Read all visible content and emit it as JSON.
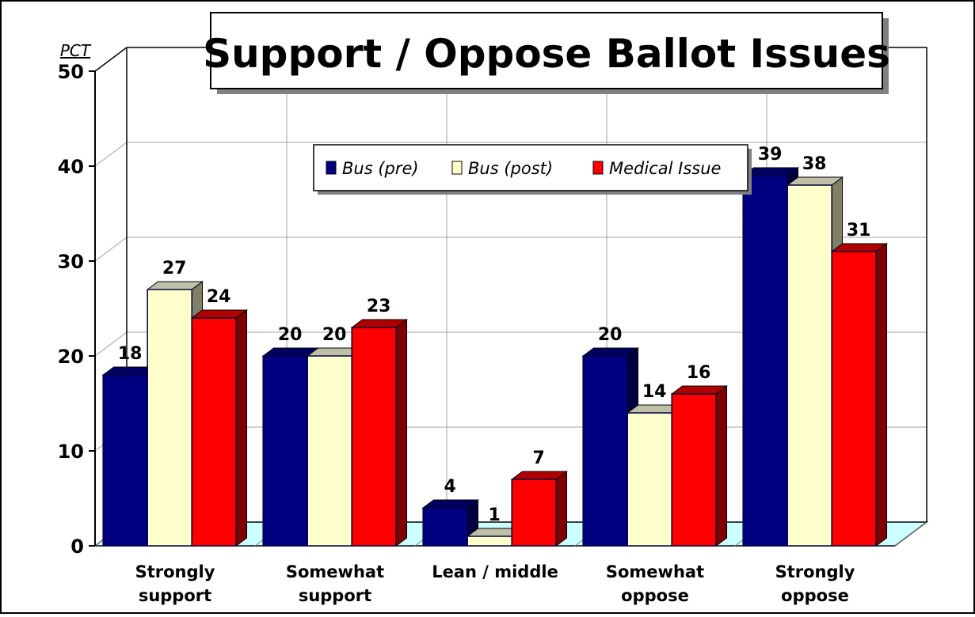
{
  "chart_data": {
    "type": "bar",
    "title": "Support / Oppose Ballot Issues",
    "ylabel": "PCT",
    "ylim": [
      0,
      50
    ],
    "yticks": [
      0,
      10,
      20,
      30,
      40,
      50
    ],
    "grid": true,
    "legend_position": "top-right",
    "categories": [
      "Strongly support",
      "Somewhat support",
      "Lean / middle",
      "Somewhat oppose",
      "Strongly oppose"
    ],
    "series": [
      {
        "name": "Bus (pre)",
        "color": "#000080",
        "values": [
          18,
          20,
          4,
          20,
          39
        ]
      },
      {
        "name": "Bus (post)",
        "color": "#FFFFCC",
        "values": [
          27,
          20,
          1,
          14,
          38
        ]
      },
      {
        "name": "Medical Issue",
        "color": "#FF0000",
        "values": [
          24,
          23,
          7,
          16,
          31
        ]
      }
    ]
  }
}
